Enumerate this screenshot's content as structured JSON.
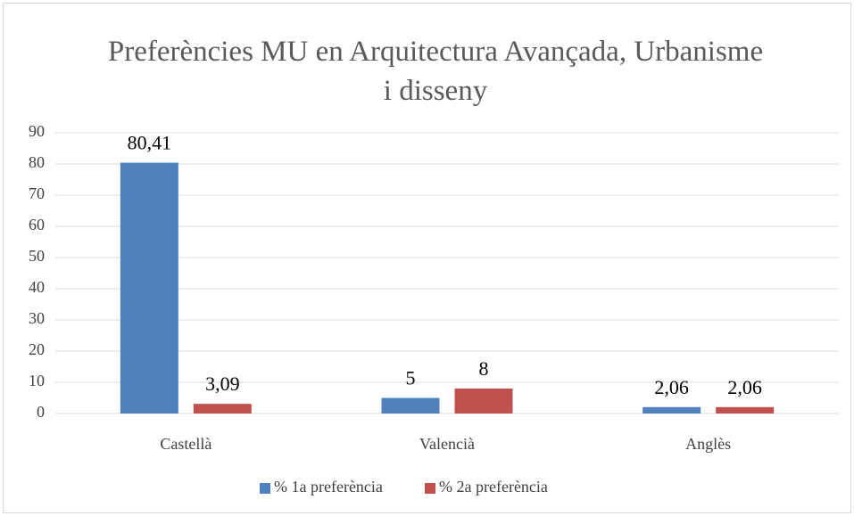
{
  "chart_data": {
    "type": "bar",
    "title": "Preferències MU en Arquitectura Avançada, Urbanisme i disseny",
    "categories": [
      "Castellà",
      "Valencià",
      "Anglès"
    ],
    "series": [
      {
        "name": "% 1a preferència",
        "color": "#4f81bd",
        "values": [
          80.41,
          5,
          2.06
        ],
        "value_labels": [
          "80,41",
          "5",
          "2,06"
        ]
      },
      {
        "name": "% 2a preferència",
        "color": "#c0504d",
        "values": [
          3.09,
          8,
          2.06
        ],
        "value_labels": [
          "3,09",
          "8",
          "2,06"
        ]
      }
    ],
    "ylim": [
      0,
      90
    ],
    "yticks": [
      0,
      10,
      20,
      30,
      40,
      50,
      60,
      70,
      80,
      90
    ],
    "grid": true,
    "legend": "bottom"
  }
}
